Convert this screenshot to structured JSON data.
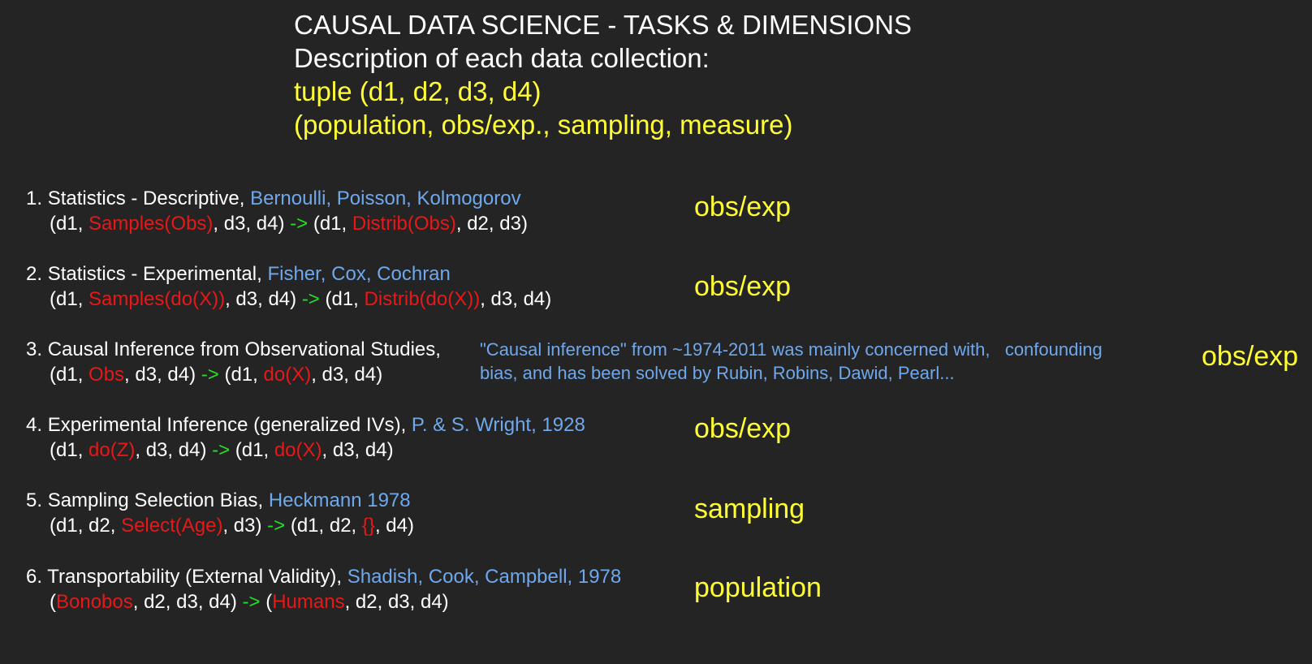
{
  "header": {
    "title": "CAUSAL DATA SCIENCE - TASKS & DIMENSIONS",
    "subtitle": "Description of each data collection:",
    "tuple": "tuple (d1, d2, d3, d4)",
    "dimensions": "(population, obs/exp., sampling, measure)"
  },
  "items": [
    {
      "num": "1.",
      "title": "Statistics - Descriptive,",
      "authors": "Bernoulli, Poisson, Kolmogorov",
      "f": [
        "(d1, ",
        "Samples(Obs)",
        ", d3, d4) ",
        "->",
        " (d1, ",
        "Distrib(Obs)",
        ", d2, d3)"
      ],
      "tag": "obs/exp"
    },
    {
      "num": "2.",
      "title": "Statistics - Experimental,",
      "authors": "Fisher, Cox, Cochran",
      "f": [
        "(d1, ",
        "Samples(do(X))",
        ", d3, d4) ",
        "->",
        " (d1, ",
        "Distrib(do(X))",
        ", d3, d4)"
      ],
      "tag": "obs/exp"
    },
    {
      "num": "3.",
      "title": "Causal Inference from Observational Studies,",
      "authors": "",
      "f": [
        "(d1, ",
        "Obs",
        ", d3, d4) ",
        "->",
        " (d1, ",
        "do(X)",
        ", d3, d4)"
      ],
      "note1": "\"Causal inference\" from ~1974-2011 was mainly concerned with,   confounding",
      "note2": "bias, and has been solved by Rubin, Robins, Dawid, Pearl...",
      "tag": "obs/exp"
    },
    {
      "num": "4.",
      "title": "Experimental Inference (generalized IVs),",
      "authors": "P. & S. Wright, 1928",
      "f": [
        "(d1, ",
        "do(Z)",
        ", d3, d4) ",
        "->",
        " (d1, ",
        "do(X)",
        ", d3, d4)"
      ],
      "tag": "obs/exp"
    },
    {
      "num": "5.",
      "title": "Sampling Selection Bias,",
      "authors": "Heckmann 1978",
      "f": [
        "(d1, d2, ",
        "Select(Age)",
        ", d3) ",
        "->",
        " (d1, d2, ",
        "{}",
        ", d4)"
      ],
      "tag": "sampling"
    },
    {
      "num": "6.",
      "title": "Transportability (External Validity),",
      "authors": "Shadish, Cook, Campbell, 1978",
      "f": [
        "(",
        "Bonobos",
        ", d2, d3, d4) ",
        "->",
        " (",
        "Humans",
        ", d2, d3, d4)"
      ],
      "tag": "population"
    }
  ]
}
